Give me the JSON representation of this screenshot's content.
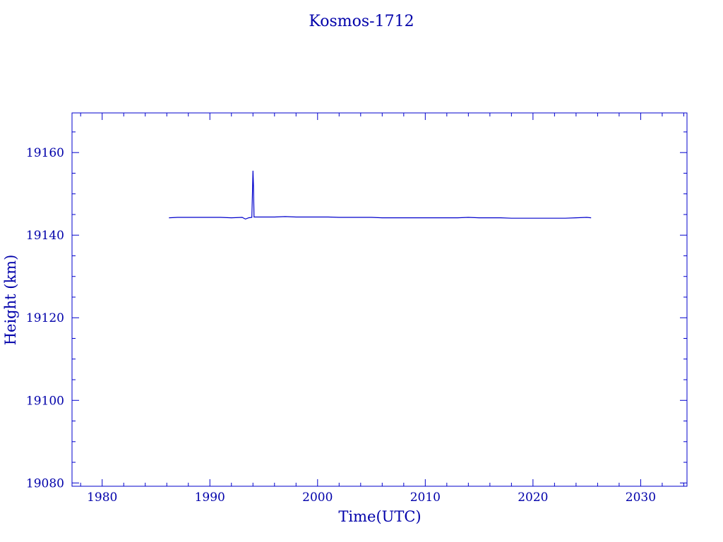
{
  "chart_data": {
    "type": "line",
    "title": "Kosmos-1712",
    "xlabel": "Time(UTC)",
    "ylabel": "Height (km)",
    "xlim": [
      1977.2,
      2034.3
    ],
    "ylim": [
      19079.2,
      19169.6
    ],
    "x_ticks": [
      1980,
      1990,
      2000,
      2010,
      2020,
      2030
    ],
    "y_ticks": [
      19080,
      19100,
      19120,
      19140,
      19160
    ],
    "grid": false,
    "color": "#0000cc",
    "series": [
      {
        "x": [
          1986.2,
          1987.0,
          1988.0,
          1989.0,
          1990.0,
          1991.0,
          1992.0,
          1993.0,
          1993.3,
          1993.6,
          1993.9,
          1994.0,
          1994.05,
          1994.1,
          1994.2,
          1995.0,
          1996.0,
          1997.0,
          1998.0,
          1999.0,
          2000.0,
          2001.0,
          2002.0,
          2003.0,
          2004.0,
          2005.0,
          2006.0,
          2007.0,
          2008.0,
          2009.0,
          2010.0,
          2011.0,
          2012.0,
          2013.0,
          2014.0,
          2015.0,
          2016.0,
          2017.0,
          2018.0,
          2019.0,
          2020.0,
          2021.0,
          2022.0,
          2023.0,
          2024.0,
          2025.0,
          2025.4
        ],
        "y": [
          19144.2,
          19144.3,
          19144.3,
          19144.3,
          19144.3,
          19144.3,
          19144.2,
          19144.3,
          19143.9,
          19144.2,
          19144.3,
          19155.6,
          19152.0,
          19144.4,
          19144.4,
          19144.4,
          19144.4,
          19144.5,
          19144.4,
          19144.4,
          19144.4,
          19144.4,
          19144.3,
          19144.3,
          19144.3,
          19144.3,
          19144.2,
          19144.2,
          19144.2,
          19144.2,
          19144.2,
          19144.2,
          19144.2,
          19144.2,
          19144.3,
          19144.2,
          19144.2,
          19144.2,
          19144.1,
          19144.1,
          19144.1,
          19144.1,
          19144.1,
          19144.1,
          19144.2,
          19144.3,
          19144.2
        ]
      }
    ]
  }
}
